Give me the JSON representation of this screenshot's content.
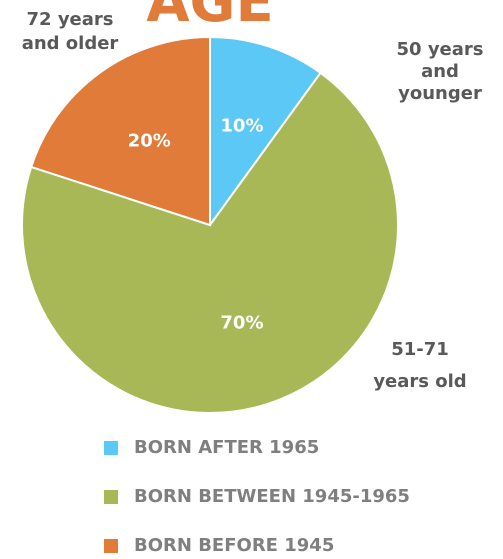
{
  "chart_data": {
    "type": "pie",
    "title": "AGE",
    "categories": [
      "BORN AFTER 1965",
      "BORN BETWEEN 1945-1965",
      "BORN BEFORE 1945"
    ],
    "values": [
      10,
      70,
      20
    ],
    "value_labels": [
      "10%",
      "70%",
      "20%"
    ],
    "colors": [
      "#5bc8f5",
      "#a9b857",
      "#e07b39"
    ],
    "annotations": [
      [
        "50 years",
        "and",
        "younger"
      ],
      [
        "51-71",
        "years old"
      ],
      [
        "72 years",
        "and older"
      ]
    ],
    "legend": "bottom"
  }
}
